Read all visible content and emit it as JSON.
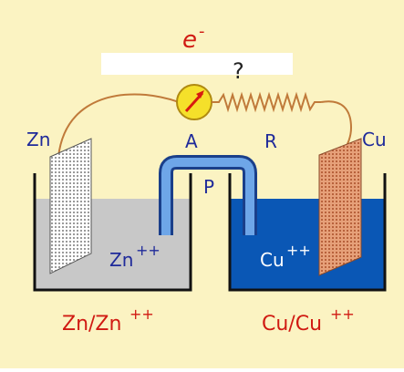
{
  "labels": {
    "electron": "e",
    "electron_superscript": "-",
    "question": "?",
    "zinc": "Zn",
    "copper": "Cu",
    "ammeter": "A",
    "resistor": "R",
    "bridge": "P",
    "zinc_ion": "Zn",
    "zinc_ion_charge": "++",
    "copper_ion": "Cu",
    "copper_ion_charge": "++",
    "zinc_half_cell": "Zn/Zn",
    "zinc_half_cell_charge": "++",
    "copper_half_cell": "Cu/Cu",
    "copper_half_cell_charge": "++"
  },
  "colors": {
    "background": "#fbf3c2",
    "label_blue": "#1f2a9a",
    "label_red": "#d01a12",
    "wire": "#c07a3a",
    "ammeter_fill": "#f5e02a",
    "ammeter_needle": "#d81a10",
    "zinc_solution": "#c8c8c8",
    "copper_solution": "#0a57b5",
    "bridge": "#3e78c8",
    "copper_plate": "#d8885a"
  }
}
